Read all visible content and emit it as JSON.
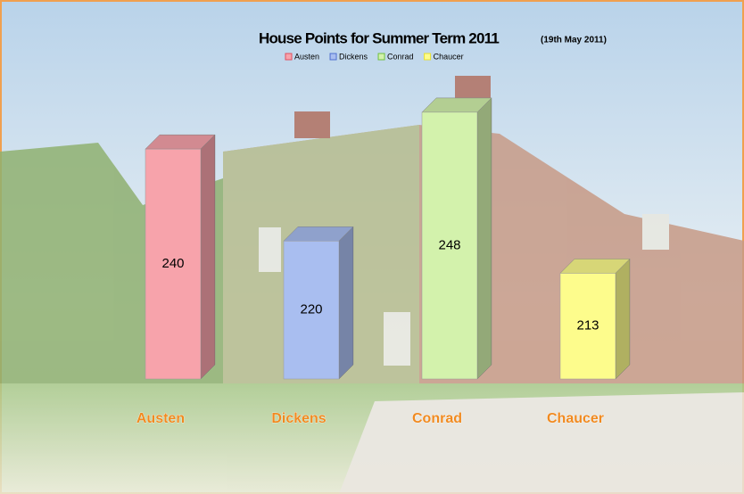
{
  "chart_data": {
    "type": "bar",
    "title": "House Points for Summer Term 2011",
    "subtitle": "(19th May 2011)",
    "categories": [
      "Austen",
      "Dickens",
      "Conrad",
      "Chaucer"
    ],
    "values": [
      240,
      220,
      248,
      213
    ],
    "colors": [
      "#f7a3ab",
      "#a9bef0",
      "#d3f2ac",
      "#fdfc8c"
    ],
    "legend_colors": [
      "#e05060",
      "#5070d0",
      "#70c040",
      "#e8e030"
    ],
    "ylim": [
      190,
      260
    ]
  }
}
